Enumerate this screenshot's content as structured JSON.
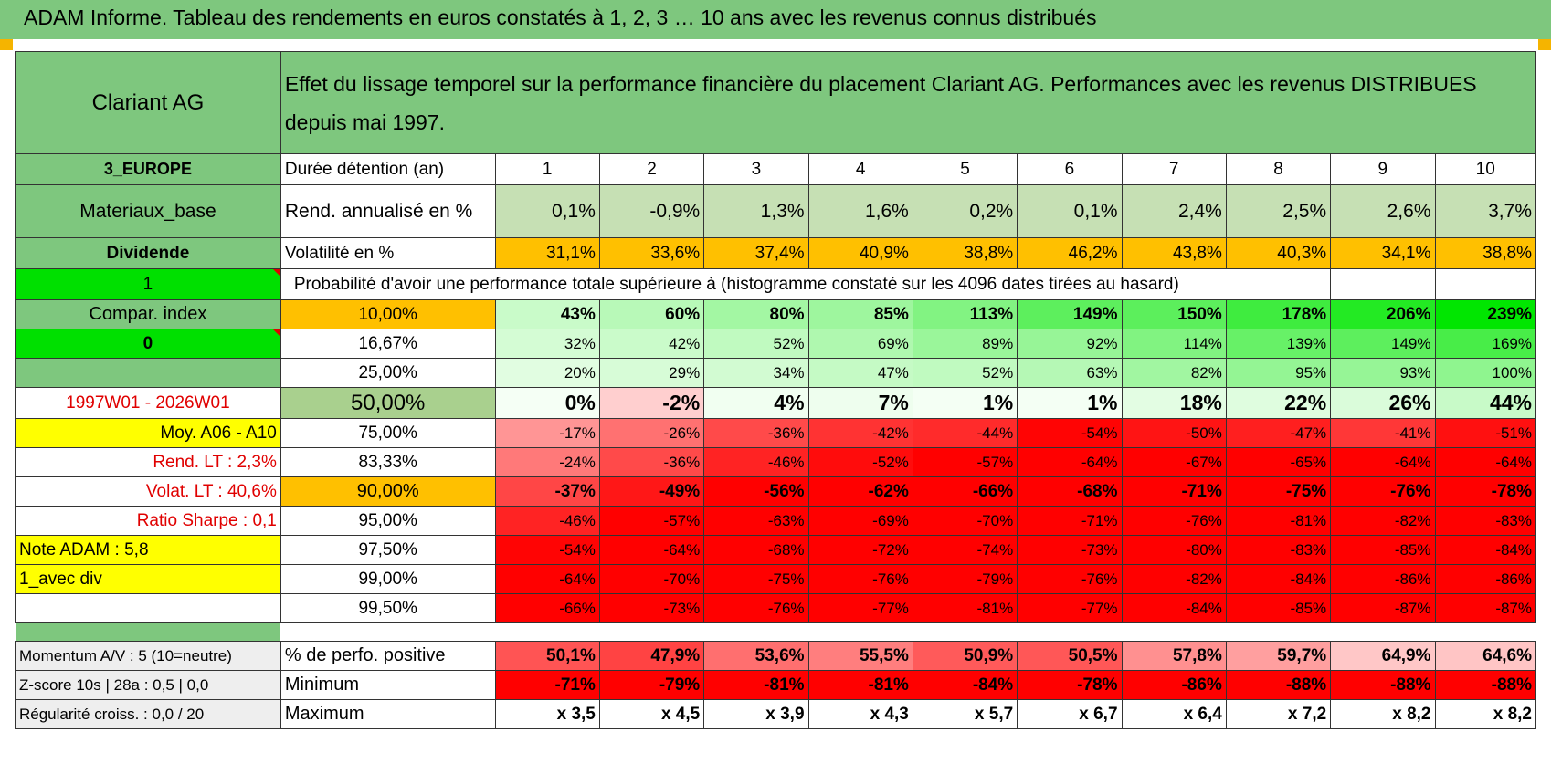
{
  "page": {
    "title": "ADAM Informe. Tableau des rendements en euros constatés à 1, 2, 3 … 10 ans avec les revenus connus distribués"
  },
  "header": {
    "company": "Clariant AG",
    "description": "Effet du lissage temporel sur la performance financière du placement Clariant AG. Performances avec les revenus DISTRIBUES depuis mai 1997."
  },
  "info": {
    "region": "3_EUROPE",
    "sector": "Materiaux_base",
    "dividend": "Dividende",
    "flag1": "1",
    "compar": "Compar. index",
    "flag0": "0",
    "period": "1997W01 - 2026W01",
    "moy": "Moy. A06 - A10",
    "rend_lt": "Rend. LT :    2,3%",
    "volat_lt": "Volat. LT :    40,6%",
    "sharpe": "Ratio Sharpe :    0,1",
    "note": "Note ADAM : 5,8",
    "div_mode": "1_avec div"
  },
  "table": {
    "duree_label": "Durée détention (an)",
    "years": [
      "1",
      "2",
      "3",
      "4",
      "5",
      "6",
      "7",
      "8",
      "9",
      "10"
    ],
    "rend_label": "Rend. annualisé en %",
    "rend": [
      "0,1%",
      "-0,9%",
      "1,3%",
      "1,6%",
      "0,2%",
      "0,1%",
      "2,4%",
      "2,5%",
      "2,6%",
      "3,7%"
    ],
    "vol_label": "Volatilité en %",
    "vol": [
      "31,1%",
      "33,6%",
      "37,4%",
      "40,9%",
      "38,8%",
      "46,2%",
      "43,8%",
      "40,3%",
      "34,1%",
      "38,8%"
    ],
    "prob_label": "Probabilité d'avoir une performance totale supérieure à (histogramme constaté sur les 4096 dates tirées au hasard)",
    "rows": [
      {
        "pct": "10,00%",
        "values": [
          "43%",
          "60%",
          "80%",
          "85%",
          "113%",
          "149%",
          "150%",
          "178%",
          "206%",
          "239%"
        ]
      },
      {
        "pct": "16,67%",
        "values": [
          "32%",
          "42%",
          "52%",
          "69%",
          "89%",
          "92%",
          "114%",
          "139%",
          "149%",
          "169%"
        ]
      },
      {
        "pct": "25,00%",
        "values": [
          "20%",
          "29%",
          "34%",
          "47%",
          "52%",
          "63%",
          "82%",
          "95%",
          "93%",
          "100%"
        ]
      },
      {
        "pct": "50,00%",
        "values": [
          "0%",
          "-2%",
          "4%",
          "7%",
          "1%",
          "1%",
          "18%",
          "22%",
          "26%",
          "44%"
        ]
      },
      {
        "pct": "75,00%",
        "values": [
          "-17%",
          "-26%",
          "-36%",
          "-42%",
          "-44%",
          "-54%",
          "-50%",
          "-47%",
          "-41%",
          "-51%"
        ]
      },
      {
        "pct": "83,33%",
        "values": [
          "-24%",
          "-36%",
          "-46%",
          "-52%",
          "-57%",
          "-64%",
          "-67%",
          "-65%",
          "-64%",
          "-64%"
        ]
      },
      {
        "pct": "90,00%",
        "values": [
          "-37%",
          "-49%",
          "-56%",
          "-62%",
          "-66%",
          "-68%",
          "-71%",
          "-75%",
          "-76%",
          "-78%"
        ]
      },
      {
        "pct": "95,00%",
        "values": [
          "-46%",
          "-57%",
          "-63%",
          "-69%",
          "-70%",
          "-71%",
          "-76%",
          "-81%",
          "-82%",
          "-83%"
        ]
      },
      {
        "pct": "97,50%",
        "values": [
          "-54%",
          "-64%",
          "-68%",
          "-72%",
          "-74%",
          "-73%",
          "-80%",
          "-83%",
          "-85%",
          "-84%"
        ]
      },
      {
        "pct": "99,00%",
        "values": [
          "-64%",
          "-70%",
          "-75%",
          "-76%",
          "-79%",
          "-76%",
          "-82%",
          "-84%",
          "-86%",
          "-86%"
        ]
      },
      {
        "pct": "99,50%",
        "values": [
          "-66%",
          "-73%",
          "-76%",
          "-77%",
          "-81%",
          "-77%",
          "-84%",
          "-85%",
          "-87%",
          "-87%"
        ]
      }
    ]
  },
  "bottom": {
    "momentum": "Momentum A/V : 5 (10=neutre)",
    "zscore": "Z-score 10s | 28a : 0,5 | 0,0",
    "regularite": "Régularité croiss. : 0,0 / 20",
    "pos_label": "% de perfo. positive",
    "pos": [
      "50,1%",
      "47,9%",
      "53,6%",
      "55,5%",
      "50,9%",
      "50,5%",
      "57,8%",
      "59,7%",
      "64,9%",
      "64,6%"
    ],
    "min_label": "Minimum",
    "min": [
      "-71%",
      "-79%",
      "-81%",
      "-81%",
      "-84%",
      "-78%",
      "-86%",
      "-88%",
      "-88%",
      "-88%"
    ],
    "max_label": "Maximum",
    "max": [
      "x 3,5",
      "x 4,5",
      "x 3,9",
      "x 4,3",
      "x 5,7",
      "x 6,7",
      "x 6,4",
      "x 7,2",
      "x 8,2",
      "x 8,2"
    ]
  },
  "colors": {
    "header_green": "#7ec77e",
    "light_green": "#c6e0b4",
    "bright_green": "#00e000",
    "yellow": "#ffff00",
    "orange": "#ffc000",
    "red": "#ff0000"
  }
}
